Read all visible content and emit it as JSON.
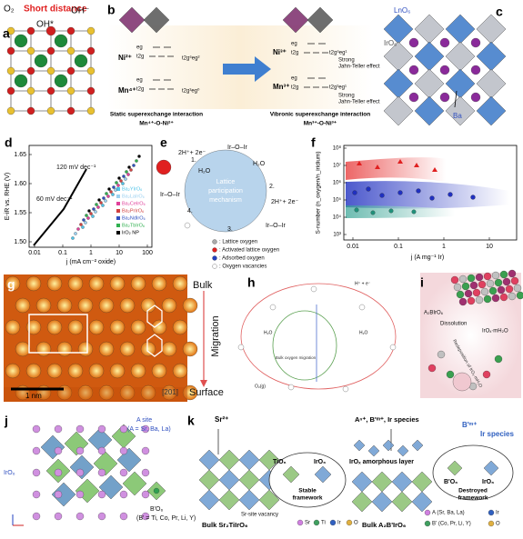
{
  "a": {
    "letter": "a",
    "o2": "O₂",
    "short": "Short distance",
    "oh": "OH⁻",
    "ohstar": "OH*"
  },
  "b": {
    "letter": "b",
    "ni2": "Ni²⁺",
    "mn4": "Mn⁴⁺",
    "ni3": "Ni³⁺",
    "mn3": "Mn³⁺",
    "eg": "eg",
    "t2g": "t2g",
    "cfg1": "t2g⁶eg²",
    "cfg2": "t2g³eg⁰",
    "cfg3": "t2g⁶eg¹",
    "cfg4": "t2g³eg¹",
    "strong": "Strong",
    "jt": "Jahn-Teller effect",
    "cap_left": "Static superexchange interaction",
    "cap_left2": "Mn⁴⁺-O-Ni²⁺",
    "cap_right": "Vibronic superexchange interaction",
    "cap_right2": "Mn³⁺-O-Ni³⁺"
  },
  "c": {
    "letter": "c",
    "lno6": "LnO₆",
    "iro6": "IrO₆",
    "ba": "Ba"
  },
  "d": {
    "letter": "d",
    "ylabel": "E-iR vs. RHE (V)",
    "xlabel": "j (mA cm⁻² oxide)",
    "yticks": [
      "1.50",
      "1.55",
      "1.60",
      "1.65"
    ],
    "xticks": [
      "0.01",
      "0.1",
      "1",
      "10",
      "100"
    ],
    "ann1": "120 mV dec⁻¹",
    "ann2": "60 mV dec⁻¹",
    "legend": [
      {
        "name": "Ba₂YIrO₆",
        "color": "#4fc3e8"
      },
      {
        "name": "Ba₂LaIrO₆",
        "color": "#9ad0f0"
      },
      {
        "name": "Ba₂CeIrO₆",
        "color": "#e0409a"
      },
      {
        "name": "Ba₂PrIrO₆",
        "color": "#d04040"
      },
      {
        "name": "Ba₂NdIrO₆",
        "color": "#3050c0"
      },
      {
        "name": "Ba₂TbIrO₆",
        "color": "#30b050"
      },
      {
        "name": "IrO₂ NP",
        "color": "#000000"
      }
    ]
  },
  "e": {
    "letter": "e",
    "top": "2H⁺+ 2e⁻",
    "iroir": "Ir–O–Ir",
    "h2o": "H₂O",
    "mech1": "Lattice",
    "mech2": "participation",
    "mech3": "mechanism",
    "n1": "1.",
    "n2": "2.",
    "n3": "3.",
    "n4": "4.",
    "right": "2H⁺+ 2e⁻",
    "leg1": ": Lattice oxygen",
    "leg2": ": Activated lattice oxygen",
    "leg3": ": Adsorbed oxygen",
    "leg4": ": Oxygen vacancies"
  },
  "f": {
    "letter": "f",
    "ylabel": "S-number (n_oxygen/n_iridium)",
    "yticks": [
      "10³",
      "10⁴",
      "10⁵",
      "10⁶",
      "10⁷",
      "10⁸"
    ],
    "xticks": [
      "0.01",
      "0.1",
      "1",
      "10"
    ],
    "xlabel": "j (A mg⁻¹ Ir)"
  },
  "g": {
    "letter": "g",
    "scale": "1 nm",
    "dir": "[201]"
  },
  "mid": {
    "bulk": "Bulk",
    "migration": "Migration",
    "surface": "Surface"
  },
  "h": {
    "letter": "h",
    "migr": "Bulk oxygen migration",
    "h2o": "H₂O",
    "o2": "O₂(g)",
    "he": "H⁺ + e⁻"
  },
  "i": {
    "letter": "i",
    "parent": "A₂BIrO₆",
    "diss": "Dissolution",
    "irox": "IrOₓ·mH₂O",
    "redep": "Redeposition of IrOₓ·mH₂O"
  },
  "j": {
    "letter": "j",
    "asite": "A site",
    "asite2": "(A = Sr, Ba, La)",
    "iro6": "IrO₆",
    "bo6": "B'O₆",
    "bo62": "(B' = Ti, Co, Pr, Li, Y)"
  },
  "k": {
    "letter": "k",
    "sr": "Sr²⁺",
    "tio6": "TiO₆",
    "iro6": "IrO₆",
    "stable1": "Stable",
    "stable2": "framework",
    "bulk1": "Bulk Sr₂TiIrO₆",
    "vac": "Sr-site vacancy",
    "l_sr": "Sr",
    "l_ti": "Ti",
    "l_ir": "Ir",
    "l_o": "O",
    "species": "Aⁿ⁺, B'ᵐ⁺, Ir species",
    "bm": "B'ᵐ⁺",
    "irsp": "Ir species",
    "amorph": "IrOₓ amorphous layer",
    "bo6": "B'O₆",
    "destroyed1": "Destroyed",
    "destroyed2": "framework",
    "bulk2": "Bulk A₂B'IrO₆",
    "l_a": "A (Sr, Ba, La)",
    "l_b": "B' (Co, Pr, Li, Y)"
  }
}
